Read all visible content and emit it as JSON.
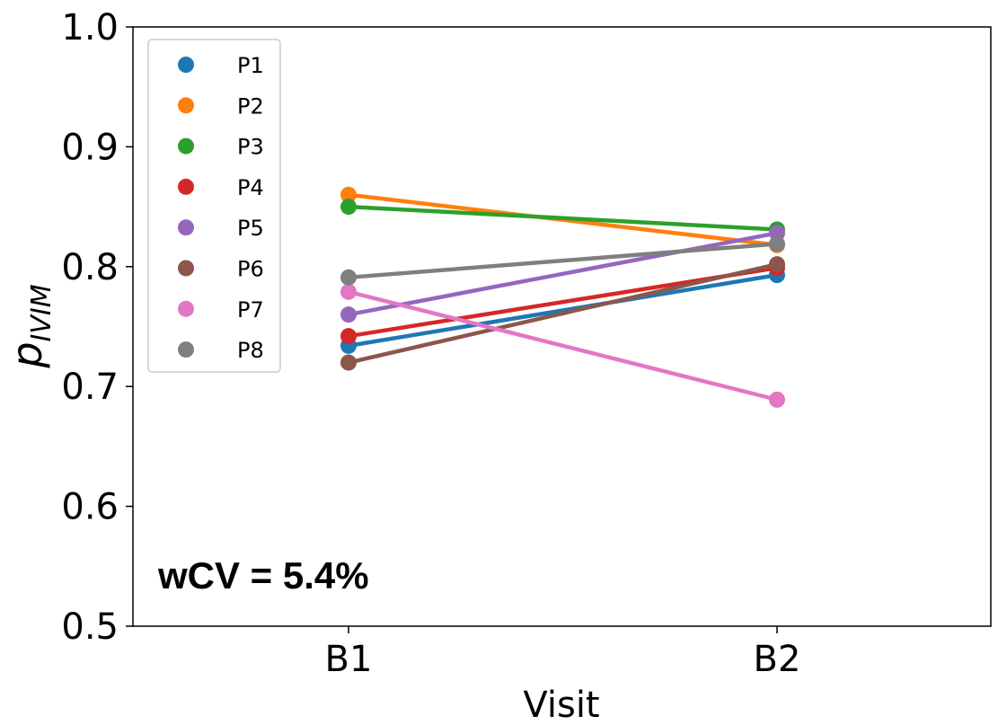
{
  "chart_data": {
    "type": "line",
    "title": "",
    "xlabel": "Visit",
    "ylabel_main": "p",
    "ylabel_sub": "IVIM",
    "categories": [
      "B1",
      "B2"
    ],
    "ylim": [
      0.5,
      1.0
    ],
    "yticks": [
      "0.5",
      "0.6",
      "0.7",
      "0.8",
      "0.9",
      "1.0"
    ],
    "grid": false,
    "legend_position": "top-left",
    "annotation": "wCV = 5.4%",
    "series": [
      {
        "name": "P1",
        "values": [
          0.734,
          0.793
        ],
        "color": "#1f77b4"
      },
      {
        "name": "P2",
        "values": [
          0.86,
          0.818
        ],
        "color": "#ff7f0e"
      },
      {
        "name": "P3",
        "values": [
          0.85,
          0.831
        ],
        "color": "#2ca02c"
      },
      {
        "name": "P4",
        "values": [
          0.742,
          0.799
        ],
        "color": "#d62728"
      },
      {
        "name": "P5",
        "values": [
          0.76,
          0.828
        ],
        "color": "#9467bd"
      },
      {
        "name": "P6",
        "values": [
          0.72,
          0.802
        ],
        "color": "#8c564b"
      },
      {
        "name": "P7",
        "values": [
          0.779,
          0.689
        ],
        "color": "#e377c2"
      },
      {
        "name": "P8",
        "values": [
          0.791,
          0.819
        ],
        "color": "#7f7f7f"
      }
    ]
  }
}
